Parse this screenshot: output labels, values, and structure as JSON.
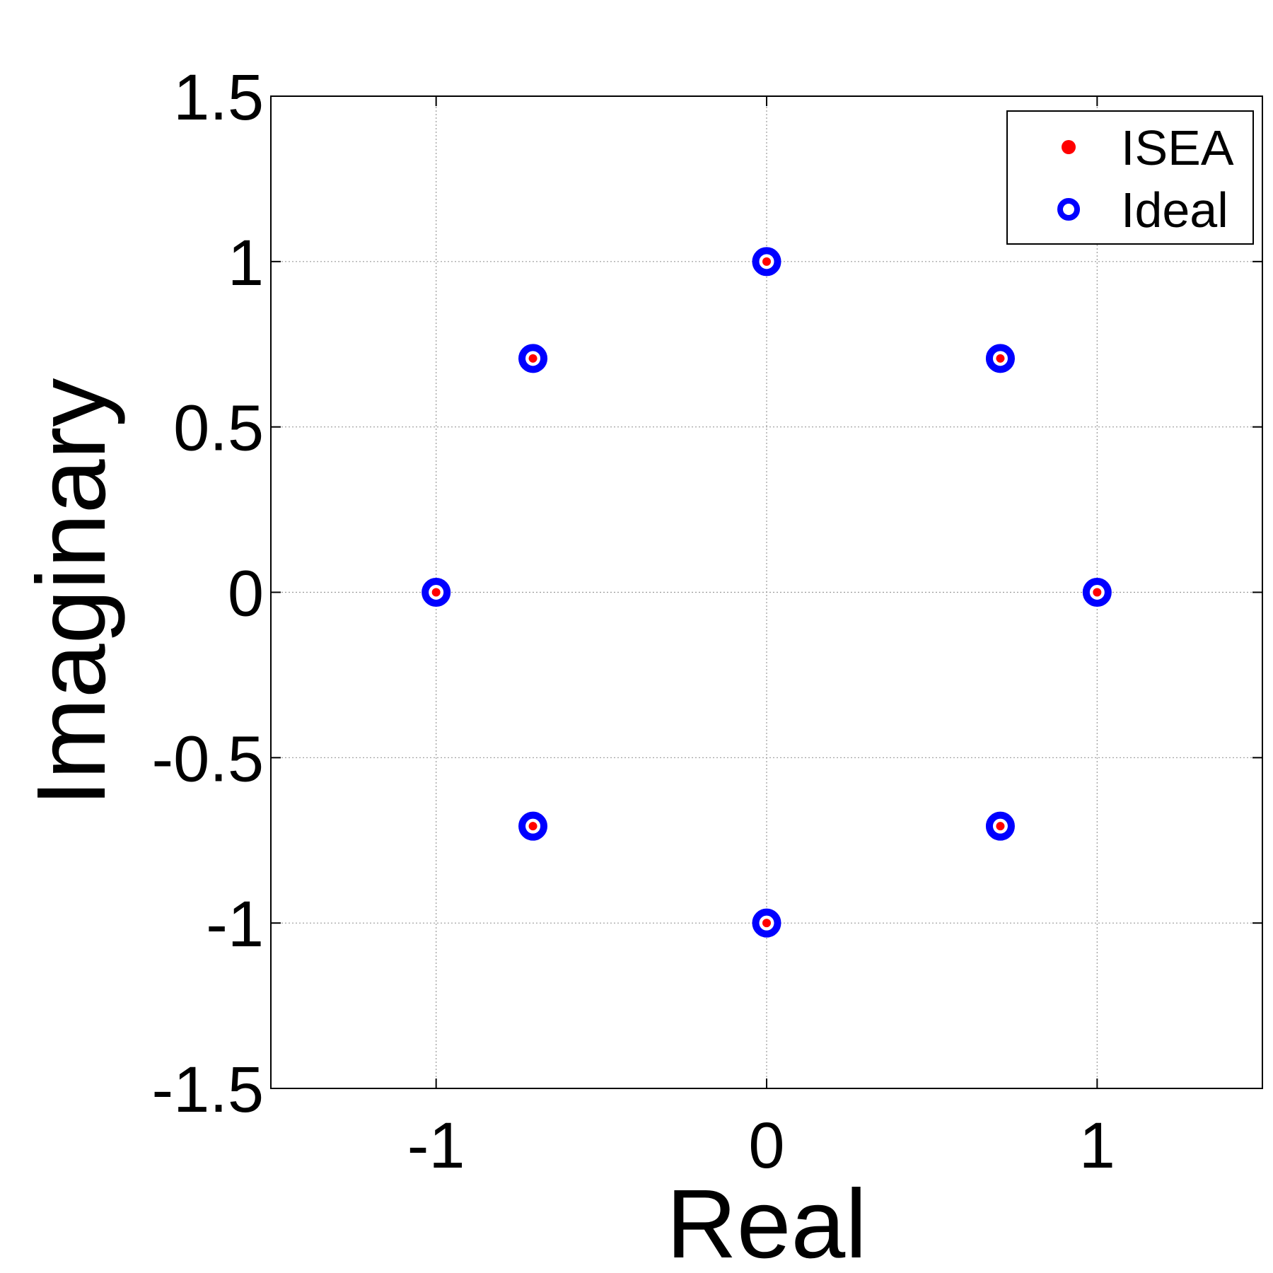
{
  "chart_data": {
    "type": "scatter",
    "title": "",
    "xlabel": "Real",
    "ylabel": "Imaginary",
    "xlim": [
      -1.5,
      1.5
    ],
    "ylim": [
      -1.5,
      1.5
    ],
    "xticks": [
      -1,
      0,
      1
    ],
    "xtick_labels": [
      "-1",
      "0",
      "1"
    ],
    "yticks": [
      -1.5,
      -1,
      -0.5,
      0,
      0.5,
      1,
      1.5
    ],
    "ytick_labels": [
      "-1.5",
      "-1",
      "-0.5",
      "0",
      "0.5",
      "1",
      "1.5"
    ],
    "grid": true,
    "legend_position": "top-right",
    "series": [
      {
        "name": "Ideal",
        "marker": "circle",
        "color": "#0000ff",
        "x": [
          1,
          0.7071,
          0,
          -0.7071,
          -1,
          -0.7071,
          0,
          0.7071
        ],
        "y": [
          0,
          0.7071,
          1,
          0.7071,
          0,
          -0.7071,
          -1,
          -0.7071
        ]
      },
      {
        "name": "ISEA",
        "marker": "dot",
        "color": "#ff0000",
        "x": [
          1,
          0.7071,
          0,
          -0.7071,
          -1,
          -0.7071,
          0,
          0.7071
        ],
        "y": [
          0,
          0.7071,
          1,
          0.7071,
          0,
          -0.7071,
          -1,
          -0.7071
        ]
      }
    ],
    "legend": [
      "ISEA",
      "Ideal"
    ]
  }
}
